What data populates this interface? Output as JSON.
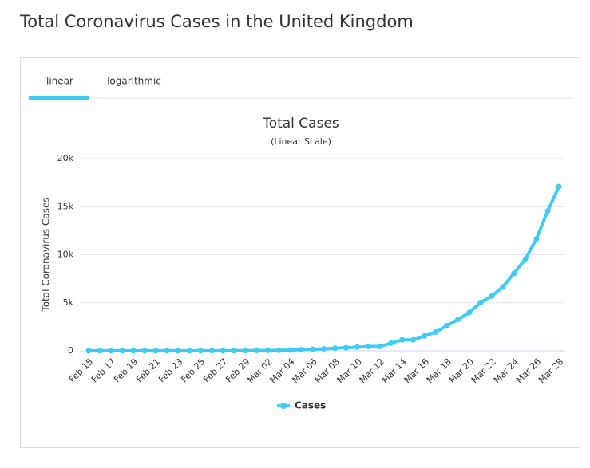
{
  "page": {
    "title": "Total Coronavirus Cases in the United Kingdom",
    "tabs": [
      "linear",
      "logarithmic"
    ]
  },
  "chart_data": {
    "type": "line",
    "title": "Total Cases",
    "subtitle": "(Linear Scale)",
    "y_label": "Total Coronavirus Cases",
    "categories": [
      "Feb 15",
      null,
      "Feb 17",
      null,
      "Feb 19",
      null,
      "Feb 21",
      null,
      "Feb 23",
      null,
      "Feb 25",
      null,
      "Feb 27",
      null,
      "Feb 29",
      null,
      "Mar 02",
      null,
      "Mar 04",
      null,
      "Mar 06",
      null,
      "Mar 08",
      null,
      "Mar 10",
      null,
      "Mar 12",
      null,
      "Mar 14",
      null,
      "Mar 16",
      null,
      "Mar 18",
      null,
      "Mar 20",
      null,
      "Mar 22",
      null,
      "Mar 24",
      null,
      "Mar 26",
      null,
      "Mar 28"
    ],
    "series": [
      {
        "name": "Cases",
        "color": "#3fcbf2",
        "values": [
          9,
          9,
          9,
          9,
          9,
          9,
          9,
          9,
          9,
          13,
          13,
          13,
          15,
          20,
          23,
          36,
          40,
          51,
          85,
          115,
          163,
          206,
          273,
          321,
          382,
          456,
          456,
          798,
          1140,
          1140,
          1543,
          1950,
          2626,
          3269,
          3983,
          5018,
          5683,
          6650,
          8077,
          9529,
          11658,
          14543,
          17089
        ]
      }
    ],
    "ylim": [
      0,
      20000
    ],
    "yticks": [
      0,
      {
        "value": 5000,
        "label": "5k"
      },
      {
        "value": 10000,
        "label": "10k"
      },
      {
        "value": 15000,
        "label": "15k"
      },
      {
        "value": 20000,
        "label": "20k"
      }
    ],
    "grid": true,
    "legend": "bottom"
  }
}
